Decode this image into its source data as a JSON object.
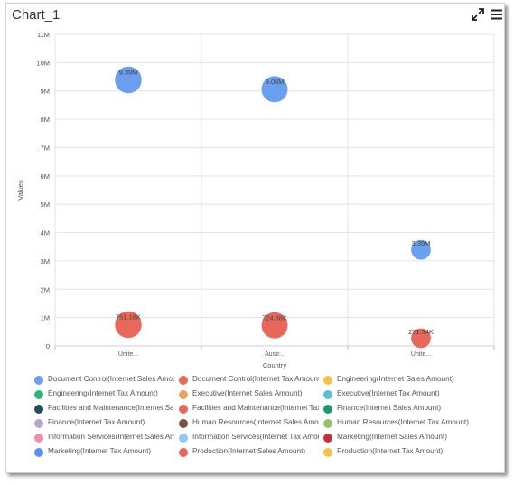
{
  "header": {
    "title": "Chart_1",
    "expand_icon": "expand-icon",
    "menu_icon": "hamburger-menu-icon"
  },
  "chart_data": {
    "type": "scatter",
    "xlabel": "Country",
    "ylabel": "Values",
    "categories": [
      "Unite...",
      "Austr...",
      "Unite..."
    ],
    "ylim": [
      0,
      11000000
    ],
    "y_ticks": [
      "0",
      "1M",
      "2M",
      "3M",
      "4M",
      "5M",
      "6M",
      "7M",
      "8M",
      "9M",
      "10M",
      "11M"
    ],
    "grid": true,
    "points": [
      {
        "category": "Unite...",
        "category_index": 0,
        "value": 9390000,
        "label": "9.39M",
        "color": "#6a9ff0",
        "size": 1.0
      },
      {
        "category": "Austr...",
        "category_index": 1,
        "value": 9060000,
        "label": "9.06M",
        "color": "#6a9ff0",
        "size": 0.96
      },
      {
        "category": "Unite...",
        "category_index": 2,
        "value": 3390000,
        "label": "3.39M",
        "color": "#6a9ff0",
        "size": 0.55
      },
      {
        "category": "Unite...",
        "category_index": 0,
        "value": 751180,
        "label": "751.18K",
        "color": "#e8685c",
        "size": 1.0
      },
      {
        "category": "Austr...",
        "category_index": 1,
        "value": 724880,
        "label": "724.88K",
        "color": "#e8685c",
        "size": 0.96
      },
      {
        "category": "Unite...",
        "category_index": 2,
        "value": 271340,
        "label": "271.34K",
        "color": "#e8685c",
        "size": 0.55
      }
    ]
  },
  "legend": {
    "rows": [
      [
        {
          "label": "Document Control(Internet Sales Amount)",
          "color": "#6a9ff0"
        },
        {
          "label": "Document Control(Internet Tax Amount)",
          "color": "#e8685c"
        },
        {
          "label": "Engineering(Internet Sales Amount)",
          "color": "#f5c242"
        }
      ],
      [
        {
          "label": "Engineering(Internet Tax Amount)",
          "color": "#2fb57a"
        },
        {
          "label": "Executive(Internet Sales Amount)",
          "color": "#f2a15a"
        },
        {
          "label": "Executive(Internet Tax Amount)",
          "color": "#5bbfd8"
        }
      ],
      [
        {
          "label": "Facilities and Maintenance(Internet Sales Amount)",
          "color": "#1e4f5c"
        },
        {
          "label": "Facilities and Maintenance(Internet Tax Amount)",
          "color": "#e8685c"
        },
        {
          "label": "Finance(Internet Sales Amount)",
          "color": "#169a6e"
        }
      ],
      [
        {
          "label": "Finance(Internet Tax Amount)",
          "color": "#b7a6c9"
        },
        {
          "label": "Human Resources(Internet Sales Amount)",
          "color": "#7a5440"
        },
        {
          "label": "Human Resources(Internet Tax Amount)",
          "color": "#8fc46a"
        }
      ],
      [
        {
          "label": "Information Services(Internet Sales Amount)",
          "color": "#f28bb0"
        },
        {
          "label": "Information Services(Internet Tax Amount)",
          "color": "#8fcaf2"
        },
        {
          "label": "Marketing(Internet Sales Amount)",
          "color": "#c2303a"
        }
      ],
      [
        {
          "label": "Marketing(Internet Tax Amount)",
          "color": "#5b8ff0"
        },
        {
          "label": "Production(Internet Sales Amount)",
          "color": "#e8685c"
        },
        {
          "label": "Production(Internet Tax Amount)",
          "color": "#f5c242"
        }
      ]
    ]
  }
}
